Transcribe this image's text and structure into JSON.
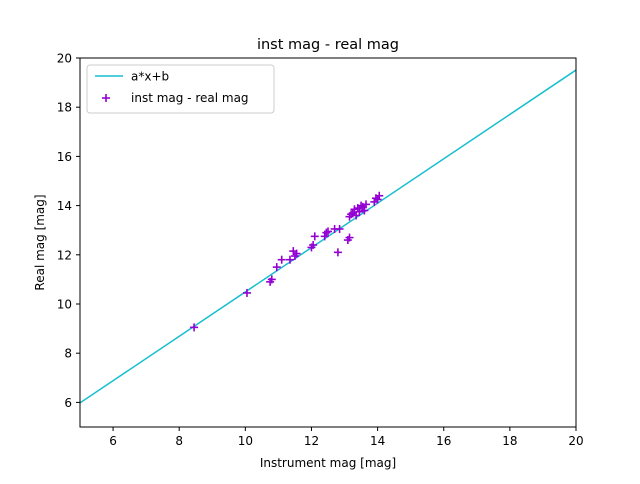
{
  "chart_data": {
    "type": "scatter",
    "title": "inst mag - real mag",
    "xlabel": "Instrument mag [mag]",
    "ylabel": "Real mag [mag]",
    "xlim": [
      5,
      20
    ],
    "ylim": [
      5,
      20
    ],
    "xticks": [
      6,
      8,
      10,
      12,
      14,
      16,
      18,
      20
    ],
    "yticks": [
      6,
      8,
      10,
      12,
      14,
      16,
      18,
      20
    ],
    "grid": false,
    "legend_position": "top-left",
    "series": [
      {
        "name": "a*x+b",
        "kind": "line",
        "color": "#17becf",
        "x": [
          5,
          20
        ],
        "y": [
          5.98,
          19.51
        ]
      },
      {
        "name": "inst mag - real mag",
        "kind": "scatter",
        "marker": "+",
        "color": "#9400d3",
        "x": [
          8.45,
          10.05,
          10.75,
          10.8,
          10.95,
          11.1,
          11.35,
          11.45,
          11.5,
          11.55,
          12.0,
          12.05,
          12.1,
          12.4,
          12.45,
          12.5,
          12.7,
          12.8,
          12.85,
          13.1,
          13.15,
          13.15,
          13.2,
          13.25,
          13.3,
          13.35,
          13.4,
          13.45,
          13.5,
          13.55,
          13.6,
          13.65,
          13.9,
          13.95,
          14.0,
          14.05
        ],
        "y": [
          9.05,
          10.45,
          10.9,
          11.0,
          11.5,
          11.8,
          11.8,
          12.15,
          11.95,
          12.05,
          12.3,
          12.4,
          12.75,
          12.75,
          12.9,
          12.95,
          13.05,
          12.1,
          13.05,
          12.6,
          13.55,
          12.7,
          13.65,
          13.7,
          13.85,
          13.6,
          13.9,
          13.75,
          14.0,
          13.95,
          13.8,
          14.05,
          14.15,
          14.3,
          14.25,
          14.4
        ]
      }
    ]
  }
}
